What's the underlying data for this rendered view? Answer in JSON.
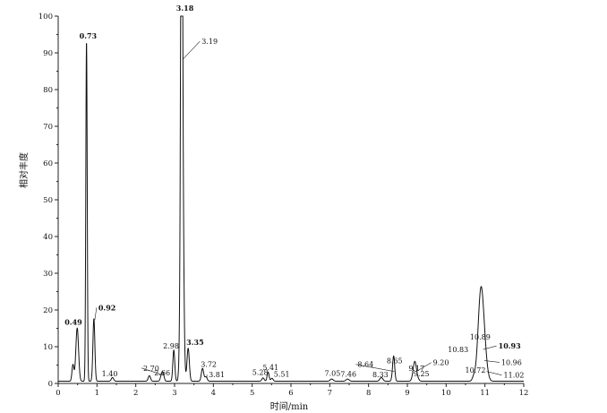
{
  "chart_data": {
    "type": "line",
    "title": "",
    "xlabel": "时间/min",
    "ylabel": "相对丰度",
    "xlim": [
      0,
      12
    ],
    "ylim": [
      0,
      100
    ],
    "x_ticks": [
      0,
      1,
      2,
      3,
      4,
      5,
      6,
      7,
      8,
      9,
      10,
      11,
      12
    ],
    "y_ticks": [
      0,
      10,
      20,
      30,
      40,
      50,
      60,
      70,
      80,
      90,
      100
    ],
    "grid": false,
    "series": [
      {
        "name": "",
        "baseline": 0.6,
        "peaks": [
          {
            "rt": 0.38,
            "height": 4.5,
            "width": 0.025
          },
          {
            "rt": 0.49,
            "height": 14.5,
            "width": 0.035
          },
          {
            "rt": 0.73,
            "height": 92.5,
            "width": 0.018
          },
          {
            "rt": 0.92,
            "height": 17,
            "width": 0.025
          },
          {
            "rt": 1.4,
            "height": 1.0,
            "width": 0.03
          },
          {
            "rt": 2.35,
            "height": 1.5,
            "width": 0.03
          },
          {
            "rt": 2.66,
            "height": 1.2,
            "width": 0.03
          },
          {
            "rt": 2.7,
            "height": 2.0,
            "width": 0.03
          },
          {
            "rt": 2.98,
            "height": 8.5,
            "width": 0.025
          },
          {
            "rt": 3.18,
            "height": 100,
            "width": 0.02
          },
          {
            "rt": 3.19,
            "height": 88,
            "width": 0.035
          },
          {
            "rt": 3.35,
            "height": 9,
            "width": 0.03
          },
          {
            "rt": 3.72,
            "height": 3.5,
            "width": 0.03
          },
          {
            "rt": 3.81,
            "height": 1.2,
            "width": 0.03
          },
          {
            "rt": 5.28,
            "height": 0.9,
            "width": 0.03
          },
          {
            "rt": 5.41,
            "height": 2.5,
            "width": 0.025
          },
          {
            "rt": 5.51,
            "height": 0.8,
            "width": 0.03
          },
          {
            "rt": 7.05,
            "height": 0.6,
            "width": 0.04
          },
          {
            "rt": 7.46,
            "height": 0.6,
            "width": 0.04
          },
          {
            "rt": 8.33,
            "height": 1.0,
            "width": 0.04
          },
          {
            "rt": 8.64,
            "height": 3.0,
            "width": 0.03
          },
          {
            "rt": 8.65,
            "height": 4.0,
            "width": 0.025
          },
          {
            "rt": 9.17,
            "height": 2.5,
            "width": 0.04
          },
          {
            "rt": 9.2,
            "height": 3.0,
            "width": 0.035
          },
          {
            "rt": 9.25,
            "height": 1.0,
            "width": 0.04
          },
          {
            "rt": 10.72,
            "height": 1.5,
            "width": 0.04
          },
          {
            "rt": 10.83,
            "height": 8.0,
            "width": 0.05
          },
          {
            "rt": 10.89,
            "height": 11.0,
            "width": 0.05
          },
          {
            "rt": 10.93,
            "height": 9.0,
            "width": 0.06
          },
          {
            "rt": 10.96,
            "height": 6.0,
            "width": 0.06
          },
          {
            "rt": 11.02,
            "height": 3.0,
            "width": 0.06
          }
        ]
      }
    ],
    "annotations": [
      {
        "text": "0.49",
        "x": 0.49,
        "y": 14.5,
        "bold": true
      },
      {
        "text": "0.73",
        "x": 0.73,
        "y": 92.5,
        "bold": true
      },
      {
        "text": "0.92",
        "x": 0.92,
        "y": 17,
        "bold": true
      },
      {
        "text": "1.40",
        "x": 1.4,
        "y": 1.0,
        "bold": false
      },
      {
        "text": "2.66",
        "x": 2.66,
        "y": 1.2,
        "bold": false
      },
      {
        "text": "2.70",
        "x": 2.7,
        "y": 2.0,
        "bold": false
      },
      {
        "text": "2.98",
        "x": 2.98,
        "y": 8.5,
        "bold": false
      },
      {
        "text": "3.18",
        "x": 3.18,
        "y": 100,
        "bold": true
      },
      {
        "text": "3.19",
        "x": 3.19,
        "y": 88,
        "bold": false
      },
      {
        "text": "3.35",
        "x": 3.35,
        "y": 9,
        "bold": true
      },
      {
        "text": "3.72",
        "x": 3.72,
        "y": 3.5,
        "bold": false
      },
      {
        "text": "3.81",
        "x": 3.81,
        "y": 1.2,
        "bold": false
      },
      {
        "text": "5.28",
        "x": 5.28,
        "y": 0.9,
        "bold": false
      },
      {
        "text": "5.41",
        "x": 5.41,
        "y": 2.5,
        "bold": false
      },
      {
        "text": "5.51",
        "x": 5.51,
        "y": 0.8,
        "bold": false
      },
      {
        "text": "7.05",
        "x": 7.05,
        "y": 0.6,
        "bold": false
      },
      {
        "text": "7.46",
        "x": 7.46,
        "y": 0.6,
        "bold": false
      },
      {
        "text": "8.64",
        "x": 8.64,
        "y": 3.0,
        "bold": false
      },
      {
        "text": "8.33",
        "x": 8.33,
        "y": 1.0,
        "bold": false
      },
      {
        "text": "8.65",
        "x": 8.65,
        "y": 4.0,
        "bold": false
      },
      {
        "text": "9.17",
        "x": 9.17,
        "y": 2.5,
        "bold": false
      },
      {
        "text": "9.20",
        "x": 9.2,
        "y": 3.0,
        "bold": false
      },
      {
        "text": "9.25",
        "x": 9.25,
        "y": 1.0,
        "bold": false
      },
      {
        "text": "10.72",
        "x": 10.72,
        "y": 1.5,
        "bold": false
      },
      {
        "text": "10.83",
        "x": 10.83,
        "y": 8.0,
        "bold": false
      },
      {
        "text": "10.89",
        "x": 10.89,
        "y": 11.0,
        "bold": false
      },
      {
        "text": "10.93",
        "x": 10.93,
        "y": 9.0,
        "bold": true
      },
      {
        "text": "10.96",
        "x": 10.96,
        "y": 6.0,
        "bold": false
      },
      {
        "text": "11.02",
        "x": 11.02,
        "y": 3.0,
        "bold": false
      }
    ]
  }
}
